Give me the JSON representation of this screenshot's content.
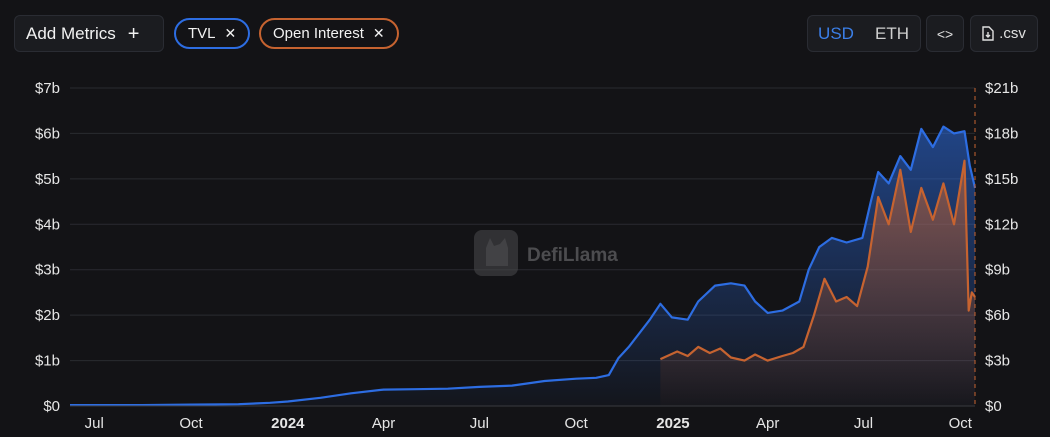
{
  "toolbar": {
    "add_metrics_label": "Add Metrics",
    "chips": [
      {
        "label": "TVL",
        "color": "#2d6de2"
      },
      {
        "label": "Open Interest",
        "color": "#c66330"
      }
    ],
    "currency_options": [
      "USD",
      "ETH"
    ],
    "selected_currency": "USD",
    "embed_icon": "code-icon",
    "csv_label": ".csv",
    "csv_icon": "file-download-icon"
  },
  "watermark": {
    "text": "DefiLlama",
    "icon": "llama-logo-icon"
  },
  "chart_data": {
    "type": "area",
    "x_tick_labels": [
      "Jul",
      "Oct",
      "2024",
      "Apr",
      "Jul",
      "Oct",
      "2025",
      "Apr",
      "Jul",
      "Oct"
    ],
    "x_tick_dates": [
      "2023-07-01",
      "2023-10-01",
      "2024-01-01",
      "2024-04-01",
      "2024-07-01",
      "2024-10-01",
      "2025-01-01",
      "2025-04-01",
      "2025-07-01",
      "2025-10-01"
    ],
    "x_range": [
      "2023-06-08",
      "2025-10-15"
    ],
    "y_left": {
      "ticks": [
        0,
        1,
        2,
        3,
        4,
        5,
        6,
        7
      ],
      "tick_labels": [
        "$0",
        "$1b",
        "$2b",
        "$3b",
        "$4b",
        "$5b",
        "$6b",
        "$7b"
      ],
      "range": [
        0,
        7
      ],
      "unit": "b"
    },
    "y_right": {
      "ticks": [
        0,
        3,
        6,
        9,
        12,
        15,
        18,
        21
      ],
      "tick_labels": [
        "$0",
        "$3b",
        "$6b",
        "$9b",
        "$12b",
        "$15b",
        "$18b",
        "$21b"
      ],
      "range": [
        0,
        21
      ],
      "unit": "b"
    },
    "grid": true,
    "series": [
      {
        "name": "TVL",
        "axis": "left",
        "color": "#2d6de2",
        "points": [
          [
            "2023-06-08",
            0.02
          ],
          [
            "2023-07-01",
            0.02
          ],
          [
            "2023-08-15",
            0.02
          ],
          [
            "2023-10-01",
            0.03
          ],
          [
            "2023-11-15",
            0.04
          ],
          [
            "2023-12-15",
            0.07
          ],
          [
            "2024-01-01",
            0.1
          ],
          [
            "2024-02-01",
            0.18
          ],
          [
            "2024-03-01",
            0.28
          ],
          [
            "2024-04-01",
            0.36
          ],
          [
            "2024-05-01",
            0.37
          ],
          [
            "2024-06-01",
            0.38
          ],
          [
            "2024-07-01",
            0.42
          ],
          [
            "2024-08-01",
            0.45
          ],
          [
            "2024-09-01",
            0.55
          ],
          [
            "2024-10-01",
            0.6
          ],
          [
            "2024-10-20",
            0.62
          ],
          [
            "2024-11-01",
            0.68
          ],
          [
            "2024-11-10",
            1.05
          ],
          [
            "2024-11-20",
            1.3
          ],
          [
            "2024-12-10",
            1.9
          ],
          [
            "2024-12-20",
            2.25
          ],
          [
            "2024-12-31",
            1.95
          ],
          [
            "2025-01-15",
            1.9
          ],
          [
            "2025-01-25",
            2.3
          ],
          [
            "2025-02-10",
            2.65
          ],
          [
            "2025-02-25",
            2.7
          ],
          [
            "2025-03-10",
            2.65
          ],
          [
            "2025-03-20",
            2.3
          ],
          [
            "2025-04-01",
            2.05
          ],
          [
            "2025-04-15",
            2.1
          ],
          [
            "2025-05-01",
            2.3
          ],
          [
            "2025-05-10",
            3.0
          ],
          [
            "2025-05-20",
            3.5
          ],
          [
            "2025-06-01",
            3.7
          ],
          [
            "2025-06-15",
            3.6
          ],
          [
            "2025-06-30",
            3.7
          ],
          [
            "2025-07-08",
            4.5
          ],
          [
            "2025-07-15",
            5.15
          ],
          [
            "2025-07-25",
            4.9
          ],
          [
            "2025-08-05",
            5.5
          ],
          [
            "2025-08-15",
            5.2
          ],
          [
            "2025-08-25",
            6.1
          ],
          [
            "2025-09-05",
            5.7
          ],
          [
            "2025-09-15",
            6.15
          ],
          [
            "2025-09-25",
            6.0
          ],
          [
            "2025-10-05",
            6.05
          ],
          [
            "2025-10-10",
            5.3
          ],
          [
            "2025-10-15",
            4.8
          ]
        ]
      },
      {
        "name": "Open Interest",
        "axis": "right",
        "color": "#c66330",
        "points": [
          [
            "2024-12-20",
            3.1
          ],
          [
            "2025-01-05",
            3.6
          ],
          [
            "2025-01-15",
            3.3
          ],
          [
            "2025-01-25",
            3.9
          ],
          [
            "2025-02-05",
            3.5
          ],
          [
            "2025-02-15",
            3.8
          ],
          [
            "2025-02-25",
            3.2
          ],
          [
            "2025-03-10",
            3.0
          ],
          [
            "2025-03-20",
            3.4
          ],
          [
            "2025-04-01",
            3.0
          ],
          [
            "2025-04-15",
            3.3
          ],
          [
            "2025-04-25",
            3.5
          ],
          [
            "2025-05-05",
            3.9
          ],
          [
            "2025-05-15",
            6.0
          ],
          [
            "2025-05-25",
            8.4
          ],
          [
            "2025-06-05",
            6.9
          ],
          [
            "2025-06-15",
            7.2
          ],
          [
            "2025-06-25",
            6.6
          ],
          [
            "2025-07-05",
            9.2
          ],
          [
            "2025-07-15",
            13.8
          ],
          [
            "2025-07-25",
            12.0
          ],
          [
            "2025-08-05",
            15.6
          ],
          [
            "2025-08-15",
            11.5
          ],
          [
            "2025-08-25",
            14.4
          ],
          [
            "2025-09-05",
            12.3
          ],
          [
            "2025-09-15",
            14.7
          ],
          [
            "2025-09-25",
            12.0
          ],
          [
            "2025-10-05",
            16.2
          ],
          [
            "2025-10-09",
            6.3
          ],
          [
            "2025-10-12",
            7.5
          ],
          [
            "2025-10-15",
            7.2
          ]
        ]
      }
    ],
    "cursor_marker": "2025-10-15"
  }
}
